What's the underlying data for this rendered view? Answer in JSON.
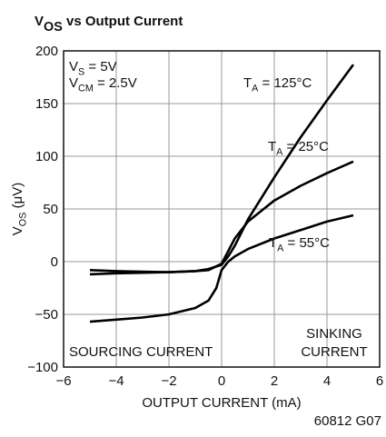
{
  "chart_data": {
    "type": "line",
    "title": [
      "V",
      "OS",
      " vs Output Current"
    ],
    "xlabel": "OUTPUT CURRENT (mA)",
    "ylabel": [
      "V",
      "OS",
      " (μV)"
    ],
    "footnote": "60812 G07",
    "xlim": [
      -6,
      6
    ],
    "ylim": [
      -100,
      200
    ],
    "xticks": [
      {
        "value": -6,
        "label": "−6"
      },
      {
        "value": -4,
        "label": "−4"
      },
      {
        "value": -2,
        "label": "−2"
      },
      0,
      2,
      4,
      6
    ],
    "yticks": [
      {
        "value": -100,
        "label": "−100"
      },
      {
        "value": -50,
        "label": "−50"
      },
      0,
      50,
      100,
      150,
      200
    ],
    "grid": true,
    "series": [
      {
        "color": "#000000",
        "x": [
          -5,
          -4,
          -3,
          -2,
          -1,
          -0.5,
          0,
          0.25,
          0.5,
          1,
          2,
          3,
          4,
          5
        ],
        "values": [
          -12,
          -11,
          -10.5,
          -10,
          -9,
          -7,
          -3,
          5,
          15,
          40,
          80,
          118,
          153,
          187
        ]
      },
      {
        "color": "#000000",
        "x": [
          -5,
          -4,
          -3,
          -2,
          -1,
          -0.5,
          0,
          0.25,
          0.5,
          1,
          2,
          3,
          4,
          5
        ],
        "values": [
          -8,
          -9,
          -9.5,
          -10,
          -9,
          -8,
          -2,
          10,
          22,
          38,
          58,
          72,
          84,
          95
        ]
      },
      {
        "color": "#000000",
        "x": [
          -5,
          -4,
          -3,
          -2,
          -1,
          -0.5,
          -0.2,
          0,
          0.25,
          0.5,
          1,
          2,
          3,
          4,
          5
        ],
        "values": [
          -57,
          -55,
          -53,
          -50,
          -44,
          -37,
          -25,
          -8,
          0,
          5,
          12,
          22,
          30,
          38,
          44
        ]
      }
    ],
    "annotations": [
      {
        "parts": [
          "V",
          "S",
          " = 5V"
        ]
      },
      {
        "parts": [
          "V",
          "CM",
          " = 2.5V"
        ]
      },
      {
        "parts": [
          "T",
          "A",
          " = 125°C"
        ]
      },
      {
        "parts": [
          "T",
          "A",
          " = 25°C"
        ]
      },
      {
        "parts": [
          "T",
          "A",
          " = 55°C"
        ]
      },
      {
        "parts": [
          "SINKING"
        ]
      },
      {
        "parts": [
          "CURRENT"
        ]
      },
      {
        "parts": [
          "SOURCING CURRENT"
        ]
      }
    ]
  }
}
